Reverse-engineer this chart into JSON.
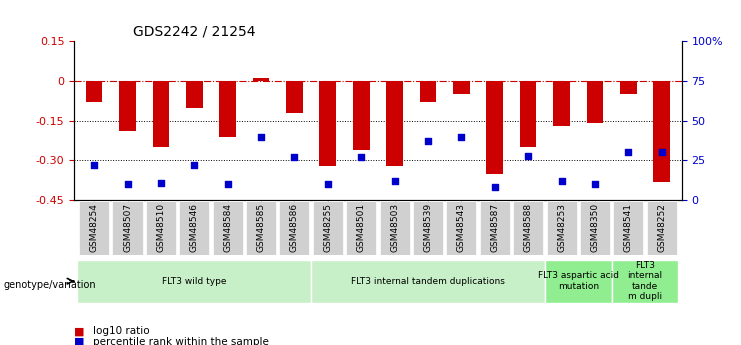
{
  "title": "GDS2242 / 21254",
  "samples": [
    "GSM48254",
    "GSM48507",
    "GSM48510",
    "GSM48546",
    "GSM48584",
    "GSM48585",
    "GSM48586",
    "GSM48255",
    "GSM48501",
    "GSM48503",
    "GSM48539",
    "GSM48543",
    "GSM48587",
    "GSM48588",
    "GSM48253",
    "GSM48350",
    "GSM48541",
    "GSM48252"
  ],
  "log10_ratio": [
    -0.08,
    -0.19,
    -0.25,
    -0.1,
    -0.21,
    0.01,
    -0.12,
    -0.32,
    -0.26,
    -0.32,
    -0.08,
    -0.05,
    -0.35,
    -0.25,
    -0.17,
    -0.16,
    -0.05,
    -0.38
  ],
  "percentile_rank": [
    22,
    10,
    11,
    22,
    10,
    40,
    27,
    10,
    27,
    12,
    37,
    40,
    8,
    28,
    12,
    10,
    30,
    30
  ],
  "groups": [
    {
      "label": "FLT3 wild type",
      "start": 0,
      "end": 6,
      "color": "#c8f0c8"
    },
    {
      "label": "FLT3 internal tandem duplications",
      "start": 7,
      "end": 13,
      "color": "#c8f0c8"
    },
    {
      "label": "FLT3 aspartic acid\nmutation",
      "start": 14,
      "end": 15,
      "color": "#90ee90"
    },
    {
      "label": "FLT3\ninternal\ntande\nm dupli",
      "start": 16,
      "end": 17,
      "color": "#90ee90"
    }
  ],
  "bar_color": "#cc0000",
  "dot_color": "#0000cc",
  "left_ylim": [
    -0.45,
    0.15
  ],
  "left_yticks": [
    0.15,
    0.0,
    -0.15,
    -0.3,
    -0.45
  ],
  "left_yticklabels": [
    "0.15",
    "0",
    "-0.15",
    "-0.30",
    "-0.45"
  ],
  "right_yticks": [
    100,
    75,
    50,
    25,
    0
  ],
  "right_yticklabels": [
    "100%",
    "75",
    "50",
    "25",
    "0"
  ],
  "legend_items": [
    {
      "color": "#cc0000",
      "label": "log10 ratio"
    },
    {
      "color": "#0000cc",
      "label": "percentile rank within the sample"
    }
  ]
}
